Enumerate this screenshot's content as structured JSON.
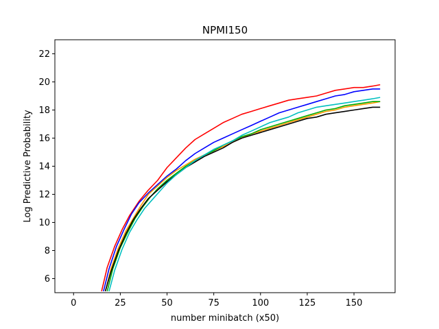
{
  "chart_data": {
    "type": "line",
    "title": "NPMI150",
    "xlabel": "number minibatch (x50)",
    "ylabel": "Log Predictive Probability",
    "xlim": [
      -10,
      172
    ],
    "ylim": [
      5,
      23
    ],
    "xticks": [
      0,
      25,
      50,
      75,
      100,
      125,
      150
    ],
    "yticks": [
      6,
      8,
      10,
      12,
      14,
      16,
      18,
      20,
      22
    ],
    "grid": false,
    "legend": "none",
    "series": [
      {
        "color": "#ff0000",
        "x": [
          15,
          18,
          22,
          26,
          30,
          35,
          40,
          45,
          50,
          55,
          60,
          65,
          70,
          75,
          80,
          85,
          90,
          95,
          100,
          105,
          110,
          115,
          120,
          125,
          130,
          135,
          140,
          145,
          150,
          155,
          160,
          164
        ],
        "y": [
          5.1,
          6.8,
          8.3,
          9.5,
          10.5,
          11.5,
          12.3,
          13.0,
          13.9,
          14.6,
          15.3,
          15.9,
          16.3,
          16.7,
          17.1,
          17.4,
          17.7,
          17.9,
          18.1,
          18.3,
          18.5,
          18.7,
          18.8,
          18.9,
          19.0,
          19.2,
          19.4,
          19.5,
          19.6,
          19.6,
          19.7,
          19.8
        ]
      },
      {
        "color": "#0000ff",
        "x": [
          16,
          19,
          23,
          27,
          31,
          35,
          40,
          45,
          50,
          55,
          60,
          65,
          70,
          75,
          80,
          85,
          90,
          95,
          100,
          105,
          110,
          115,
          120,
          125,
          130,
          135,
          140,
          145,
          150,
          155,
          160,
          164
        ],
        "y": [
          5.1,
          6.7,
          8.3,
          9.5,
          10.6,
          11.4,
          12.1,
          12.7,
          13.3,
          13.8,
          14.4,
          14.9,
          15.3,
          15.7,
          16.0,
          16.3,
          16.6,
          16.9,
          17.2,
          17.5,
          17.8,
          18.0,
          18.2,
          18.4,
          18.6,
          18.8,
          19.0,
          19.1,
          19.3,
          19.4,
          19.5,
          19.5
        ]
      },
      {
        "color": "#ff9900",
        "x": [
          17,
          20,
          24,
          28,
          32,
          36,
          40,
          45,
          50,
          55,
          60,
          65,
          70,
          75,
          80,
          85,
          90,
          95,
          100,
          105,
          110,
          115,
          120,
          125,
          130,
          135,
          140,
          145,
          150,
          155,
          160,
          164
        ],
        "y": [
          5.1,
          6.7,
          8.2,
          9.4,
          10.3,
          11.2,
          12.0,
          12.6,
          13.2,
          13.7,
          14.1,
          14.5,
          14.8,
          15.1,
          15.4,
          15.7,
          16.0,
          16.3,
          16.5,
          16.7,
          16.9,
          17.1,
          17.3,
          17.5,
          17.7,
          17.9,
          18.0,
          18.2,
          18.3,
          18.4,
          18.5,
          18.6
        ]
      },
      {
        "color": "#00aa00",
        "x": [
          18,
          21,
          25,
          29,
          33,
          37,
          41,
          45,
          50,
          55,
          60,
          65,
          70,
          75,
          80,
          85,
          90,
          95,
          100,
          105,
          110,
          115,
          120,
          125,
          130,
          135,
          140,
          145,
          150,
          155,
          160,
          164
        ],
        "y": [
          5.1,
          6.7,
          8.2,
          9.3,
          10.3,
          11.1,
          11.8,
          12.4,
          13.0,
          13.5,
          14.0,
          14.4,
          14.8,
          15.1,
          15.5,
          15.8,
          16.1,
          16.3,
          16.6,
          16.8,
          17.0,
          17.2,
          17.4,
          17.6,
          17.8,
          18.0,
          18.1,
          18.3,
          18.4,
          18.5,
          18.6,
          18.6
        ]
      },
      {
        "color": "#000000",
        "x": [
          17,
          20,
          24,
          28,
          32,
          36,
          40,
          45,
          50,
          55,
          60,
          65,
          70,
          75,
          80,
          85,
          90,
          95,
          100,
          105,
          110,
          115,
          120,
          125,
          130,
          135,
          140,
          145,
          150,
          155,
          160,
          164
        ],
        "y": [
          5.1,
          6.5,
          8.0,
          9.2,
          10.2,
          11.0,
          11.7,
          12.3,
          12.9,
          13.4,
          13.9,
          14.3,
          14.7,
          15.0,
          15.3,
          15.7,
          16.0,
          16.2,
          16.4,
          16.6,
          16.8,
          17.0,
          17.2,
          17.4,
          17.5,
          17.7,
          17.8,
          17.9,
          18.0,
          18.1,
          18.2,
          18.2
        ]
      },
      {
        "color": "#00bfbf",
        "x": [
          19,
          22,
          26,
          30,
          34,
          38,
          42,
          46,
          50,
          55,
          60,
          65,
          70,
          75,
          80,
          85,
          90,
          95,
          100,
          105,
          110,
          115,
          120,
          125,
          130,
          135,
          140,
          145,
          150,
          155,
          160,
          164
        ],
        "y": [
          5.1,
          6.6,
          8.1,
          9.3,
          10.2,
          11.0,
          11.6,
          12.2,
          12.8,
          13.4,
          13.9,
          14.4,
          14.8,
          15.2,
          15.5,
          15.8,
          16.2,
          16.5,
          16.8,
          17.1,
          17.3,
          17.5,
          17.8,
          18.0,
          18.2,
          18.3,
          18.4,
          18.5,
          18.6,
          18.7,
          18.8,
          18.9
        ]
      }
    ]
  }
}
